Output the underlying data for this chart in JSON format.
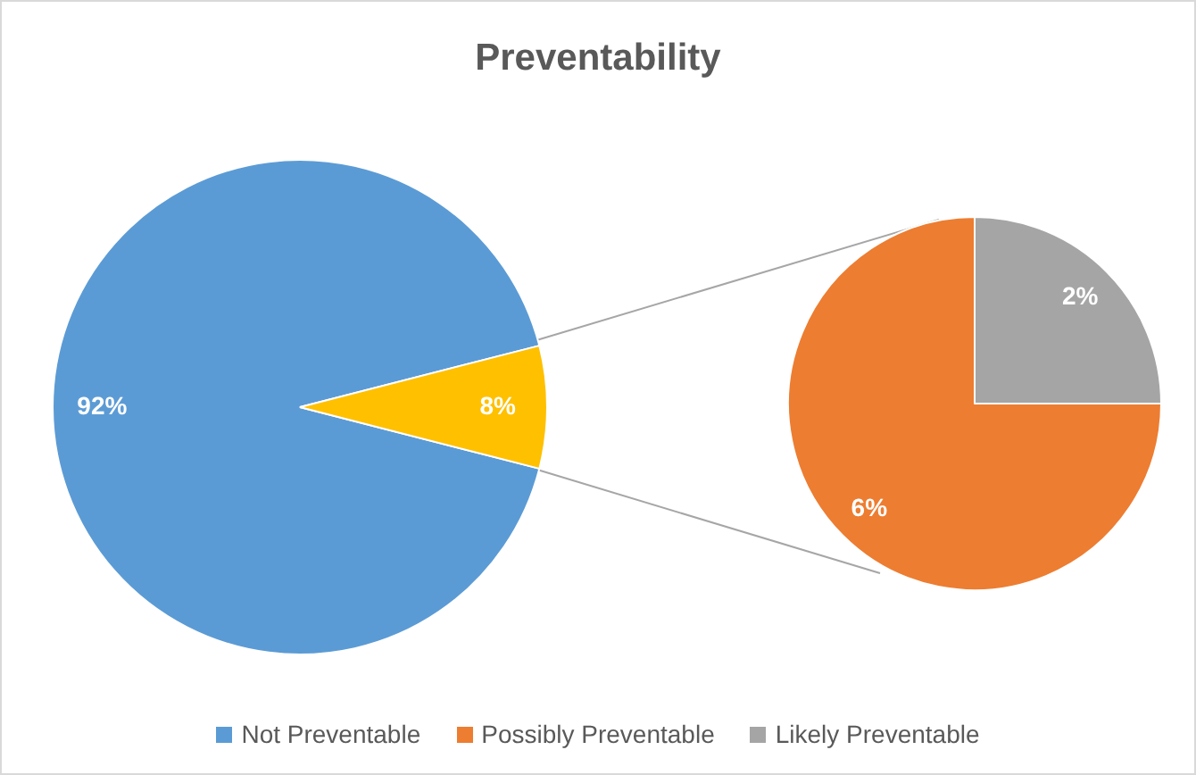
{
  "chart_data": [
    {
      "type": "pie",
      "title": "Preventability",
      "categories": [
        "Not Preventable",
        null
      ],
      "values": [
        92,
        8
      ],
      "colors": [
        "#5b9bd5",
        "#ffc000"
      ],
      "value_labels": [
        "92%",
        "8%"
      ],
      "legend": "bottom"
    },
    {
      "type": "pie",
      "categories": [
        "Possibly Preventable",
        "Likely Preventable"
      ],
      "values": [
        6,
        2
      ],
      "colors": [
        "#ed7d31",
        "#a5a5a5"
      ],
      "value_labels": [
        "6%",
        "2%"
      ],
      "legend": "bottom"
    }
  ]
}
